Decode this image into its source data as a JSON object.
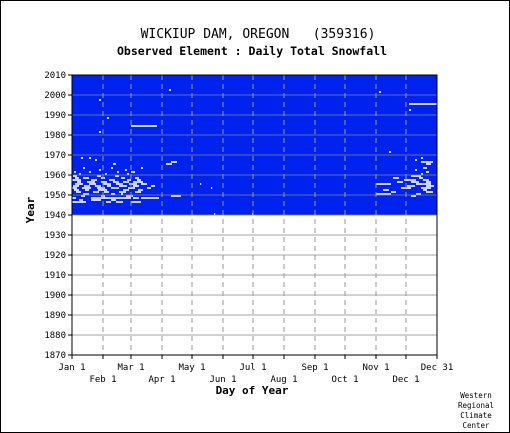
{
  "chart_data": {
    "type": "heatmap",
    "title": "WICKIUP DAM, OREGON   (359316)",
    "subtitle": "Observed Element : Daily Total Snowfall",
    "xlabel": "Day of Year",
    "ylabel": "Year",
    "ylim": [
      1870,
      2010
    ],
    "xlim": [
      1,
      366
    ],
    "grid": true,
    "y_ticks": [
      1870,
      1880,
      1890,
      1900,
      1910,
      1920,
      1930,
      1940,
      1950,
      1960,
      1970,
      1980,
      1990,
      2000,
      2010
    ],
    "x_ticks": [
      {
        "label": "Jan 1",
        "day": 1,
        "row": 0
      },
      {
        "label": "Feb 1",
        "day": 32,
        "row": 1
      },
      {
        "label": "Mar 1",
        "day": 60,
        "row": 0
      },
      {
        "label": "Apr 1",
        "day": 91,
        "row": 1
      },
      {
        "label": "May 1",
        "day": 121,
        "row": 0
      },
      {
        "label": "Jun 1",
        "day": 152,
        "row": 1
      },
      {
        "label": "Jul 1",
        "day": 182,
        "row": 0
      },
      {
        "label": "Aug 1",
        "day": 213,
        "row": 1
      },
      {
        "label": "Sep 1",
        "day": 244,
        "row": 0
      },
      {
        "label": "Oct 1",
        "day": 274,
        "row": 1
      },
      {
        "label": "Nov 1",
        "day": 305,
        "row": 0
      },
      {
        "label": "Dec 1",
        "day": 335,
        "row": 1
      },
      {
        "label": "Dec 31",
        "day": 366,
        "row": 0
      }
    ],
    "data_region": {
      "years": [
        1940,
        2010
      ],
      "days": [
        1,
        366
      ],
      "color": "#0022ee",
      "meaning": "observed, zero snowfall"
    },
    "snow_color": "#ffffff",
    "snow_days": [
      {
        "year": 1946,
        "days": [
          [
            1,
            15
          ],
          [
            35,
            40
          ],
          [
            45,
            52
          ],
          [
            60,
            70
          ]
        ]
      },
      {
        "year": 1947,
        "days": [
          [
            8,
            12
          ],
          [
            20,
            30
          ],
          [
            40,
            45
          ]
        ]
      },
      {
        "year": 1948,
        "days": [
          [
            1,
            5
          ],
          [
            20,
            60
          ],
          [
            62,
            68
          ],
          [
            70,
            88
          ]
        ]
      },
      {
        "year": 1949,
        "days": [
          [
            10,
            14
          ],
          [
            30,
            34
          ],
          [
            55,
            62
          ],
          [
            100,
            110
          ],
          [
            340,
            345
          ]
        ]
      },
      {
        "year": 1950,
        "days": [
          [
            12,
            18
          ],
          [
            40,
            44
          ],
          [
            50,
            52
          ],
          [
            305,
            320
          ],
          [
            345,
            350
          ]
        ]
      },
      {
        "year": 1951,
        "days": [
          [
            5,
            10
          ],
          [
            22,
            28
          ],
          [
            33,
            38
          ],
          [
            48,
            55
          ],
          [
            64,
            70
          ],
          [
            320,
            325
          ],
          [
            355,
            362
          ]
        ]
      },
      {
        "year": 1952,
        "days": [
          [
            3,
            8
          ],
          [
            14,
            18
          ],
          [
            27,
            36
          ],
          [
            52,
            58
          ],
          [
            67,
            72
          ],
          [
            312,
            318
          ],
          [
            352,
            356
          ]
        ]
      },
      {
        "year": 1953,
        "days": [
          [
            1,
            6
          ],
          [
            11,
            20
          ],
          [
            26,
            34
          ],
          [
            40,
            48
          ],
          [
            57,
            64
          ],
          [
            76,
            80
          ],
          [
            140,
            141
          ],
          [
            330,
            340
          ],
          [
            350,
            360
          ]
        ]
      },
      {
        "year": 1954,
        "days": [
          [
            2,
            8
          ],
          [
            13,
            19
          ],
          [
            24,
            30
          ],
          [
            36,
            40
          ],
          [
            48,
            56
          ],
          [
            62,
            68
          ],
          [
            80,
            84
          ],
          [
            336,
            344
          ],
          [
            355,
            363
          ]
        ]
      },
      {
        "year": 1955,
        "days": [
          [
            4,
            12
          ],
          [
            18,
            25
          ],
          [
            32,
            40
          ],
          [
            45,
            52
          ],
          [
            58,
            66
          ],
          [
            70,
            76
          ],
          [
            129,
            130
          ],
          [
            305,
            320
          ],
          [
            345,
            360
          ]
        ]
      },
      {
        "year": 1956,
        "days": [
          [
            6,
            10
          ],
          [
            16,
            24
          ],
          [
            30,
            36
          ],
          [
            42,
            48
          ],
          [
            52,
            58
          ],
          [
            62,
            72
          ],
          [
            326,
            332
          ],
          [
            340,
            348
          ],
          [
            355,
            360
          ]
        ]
      },
      {
        "year": 1957,
        "days": [
          [
            1,
            10
          ],
          [
            20,
            26
          ],
          [
            38,
            44
          ],
          [
            56,
            60
          ],
          [
            66,
            70
          ],
          [
            333,
            345
          ],
          [
            352,
            358
          ]
        ]
      },
      {
        "year": 1958,
        "days": [
          [
            4,
            8
          ],
          [
            12,
            18
          ],
          [
            30,
            34
          ],
          [
            50,
            54
          ],
          [
            64,
            68
          ],
          [
            322,
            328
          ],
          [
            348,
            352
          ]
        ]
      },
      {
        "year": 1959,
        "days": [
          [
            2,
            6
          ],
          [
            26,
            30
          ],
          [
            44,
            48
          ],
          [
            340,
            350
          ]
        ]
      },
      {
        "year": 1960,
        "days": [
          [
            8,
            10
          ],
          [
            34,
            36
          ],
          [
            56,
            58
          ],
          [
            350,
            352
          ]
        ]
      },
      {
        "year": 1961,
        "days": [
          [
            3,
            5
          ],
          [
            18,
            20
          ],
          [
            46,
            48
          ],
          [
            60,
            64
          ],
          [
            355,
            358
          ]
        ]
      },
      {
        "year": 1962,
        "days": [
          [
            28,
            30
          ],
          [
            54,
            56
          ],
          [
            344,
            346
          ]
        ]
      },
      {
        "year": 1963,
        "days": [
          [
            12,
            14
          ],
          [
            40,
            42
          ],
          [
            70,
            72
          ],
          [
            352,
            356
          ]
        ]
      },
      {
        "year": 1965,
        "days": [
          [
            42,
            45
          ],
          [
            95,
            101
          ],
          [
            355,
            360
          ]
        ]
      },
      {
        "year": 1966,
        "days": [
          [
            100,
            106
          ],
          [
            350,
            362
          ]
        ]
      },
      {
        "year": 1967,
        "days": [
          [
            24,
            26
          ],
          [
            344,
            346
          ]
        ]
      },
      {
        "year": 1968,
        "days": [
          [
            10,
            12
          ],
          [
            18,
            20
          ],
          [
            350,
            352
          ]
        ]
      },
      {
        "year": 1971,
        "days": [
          [
            318,
            320
          ]
        ]
      },
      {
        "year": 1981,
        "days": [
          [
            28,
            30
          ]
        ]
      },
      {
        "year": 1984,
        "days": [
          [
            60,
            86
          ]
        ]
      },
      {
        "year": 1988,
        "days": [
          [
            36,
            38
          ]
        ]
      },
      {
        "year": 1992,
        "days": [
          [
            338,
            340
          ]
        ]
      },
      {
        "year": 1995,
        "days": [
          [
            338,
            366
          ]
        ]
      },
      {
        "year": 1997,
        "days": [
          [
            28,
            30
          ]
        ]
      },
      {
        "year": 2001,
        "days": [
          [
            308,
            310
          ]
        ]
      },
      {
        "year": 2002,
        "days": [
          [
            98,
            100
          ]
        ]
      },
      {
        "year": 1940,
        "days": [
          [
            143,
            144
          ],
          [
            181,
            182
          ]
        ]
      }
    ]
  },
  "credit": [
    "Western",
    "Regional",
    "Climate",
    "Center"
  ]
}
